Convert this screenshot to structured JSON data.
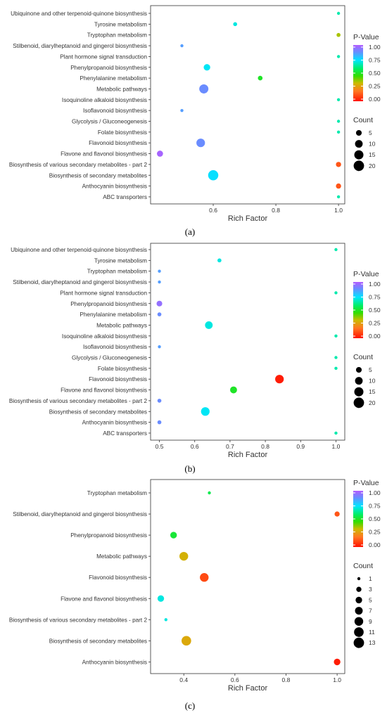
{
  "chart_data": [
    {
      "type": "scatter",
      "panel_label": "(a)",
      "xlabel": "Rich Factor",
      "x_ticks": [
        "0.6",
        "0.8",
        "1.0"
      ],
      "xlim": [
        0.4,
        1.02
      ],
      "categories": [
        "Ubiquinone and other terpenoid-quinone biosynthesis",
        "Tyrosine metabolism",
        "Tryptophan metabolism",
        "Stilbenoid, diarylheptanoid and gingerol biosynthesis",
        "Plant hormone signal transduction",
        "Phenylpropanoid biosynthesis",
        "Phenylalanine metabolism",
        "Metabolic pathways",
        "Isoquinoline alkaloid biosynthesis",
        "Isoflavonoid biosynthesis",
        "Glycolysis / Gluconeogenesis",
        "Folate biosynthesis",
        "Flavonoid biosynthesis",
        "Flavone and flavonol biosynthesis",
        "Biosynthesis of various secondary metabolites - part 2",
        "Biosynthesis of secondary metabolites",
        "Anthocyanin biosynthesis",
        "ABC transporters"
      ],
      "points": [
        {
          "x": 1.0,
          "count": 1,
          "p": 0.65
        },
        {
          "x": 0.67,
          "count": 2,
          "p": 0.7
        },
        {
          "x": 1.0,
          "count": 2,
          "p": 0.35
        },
        {
          "x": 0.5,
          "count": 1,
          "p": 0.85
        },
        {
          "x": 1.0,
          "count": 1,
          "p": 0.65
        },
        {
          "x": 0.58,
          "count": 7,
          "p": 0.72
        },
        {
          "x": 0.75,
          "count": 3,
          "p": 0.5
        },
        {
          "x": 0.57,
          "count": 15,
          "p": 0.88
        },
        {
          "x": 1.0,
          "count": 1,
          "p": 0.65
        },
        {
          "x": 0.5,
          "count": 1,
          "p": 0.85
        },
        {
          "x": 1.0,
          "count": 1,
          "p": 0.65
        },
        {
          "x": 1.0,
          "count": 1,
          "p": 0.65
        },
        {
          "x": 0.56,
          "count": 13,
          "p": 0.88
        },
        {
          "x": 0.43,
          "count": 6,
          "p": 0.98
        },
        {
          "x": 1.0,
          "count": 4,
          "p": 0.12
        },
        {
          "x": 0.6,
          "count": 19,
          "p": 0.74
        },
        {
          "x": 1.0,
          "count": 4,
          "p": 0.12
        },
        {
          "x": 1.0,
          "count": 1,
          "p": 0.65
        }
      ],
      "color_legend": {
        "title": "P-Value",
        "ticks": [
          "1.00",
          "0.75",
          "0.50",
          "0.25",
          "0.00"
        ]
      },
      "size_legend": {
        "title": "Count",
        "labels": [
          "5",
          "10",
          "15",
          "20"
        ],
        "values": [
          5,
          10,
          15,
          20
        ]
      },
      "count_range": [
        1,
        20
      ]
    },
    {
      "type": "scatter",
      "panel_label": "(b)",
      "xlabel": "Rich Factor",
      "x_ticks": [
        "0.5",
        "0.6",
        "0.7",
        "0.8",
        "0.9",
        "1.0"
      ],
      "xlim": [
        0.475,
        1.025
      ],
      "categories": [
        "Ubiquinone and other terpenoid-quinone biosynthesis",
        "Tyrosine metabolism",
        "Tryptophan metabolism",
        "Stilbenoid, diarylheptanoid and gingerol biosynthesis",
        "Plant hormone signal transduction",
        "Phenylpropanoid biosynthesis",
        "Phenylalanine metabolism",
        "Metabolic pathways",
        "Isoquinoline alkaloid biosynthesis",
        "Isoflavonoid biosynthesis",
        "Glycolysis / Gluconeogenesis",
        "Folate biosynthesis",
        "Flavonoid biosynthesis",
        "Flavone and flavonol biosynthesis",
        "Biosynthesis of various secondary metabolites - part 2",
        "Biosynthesis of secondary metabolites",
        "Anthocyanin biosynthesis",
        "ABC transporters"
      ],
      "points": [
        {
          "x": 1.0,
          "count": 1,
          "p": 0.65
        },
        {
          "x": 0.67,
          "count": 2,
          "p": 0.7
        },
        {
          "x": 0.5,
          "count": 1,
          "p": 0.85
        },
        {
          "x": 0.5,
          "count": 1,
          "p": 0.85
        },
        {
          "x": 1.0,
          "count": 1,
          "p": 0.65
        },
        {
          "x": 0.5,
          "count": 5,
          "p": 0.95
        },
        {
          "x": 0.5,
          "count": 2,
          "p": 0.88
        },
        {
          "x": 0.64,
          "count": 10,
          "p": 0.7
        },
        {
          "x": 1.0,
          "count": 1,
          "p": 0.65
        },
        {
          "x": 0.5,
          "count": 1,
          "p": 0.85
        },
        {
          "x": 1.0,
          "count": 1,
          "p": 0.65
        },
        {
          "x": 1.0,
          "count": 1,
          "p": 0.65
        },
        {
          "x": 0.84,
          "count": 13,
          "p": 0.02
        },
        {
          "x": 0.71,
          "count": 8,
          "p": 0.5
        },
        {
          "x": 0.5,
          "count": 2,
          "p": 0.88
        },
        {
          "x": 0.63,
          "count": 13,
          "p": 0.72
        },
        {
          "x": 0.5,
          "count": 2,
          "p": 0.88
        },
        {
          "x": 1.0,
          "count": 1,
          "p": 0.65
        }
      ],
      "color_legend": {
        "title": "P-Value",
        "ticks": [
          "1.00",
          "0.75",
          "0.50",
          "0.25",
          "0.00"
        ]
      },
      "size_legend": {
        "title": "Count",
        "labels": [
          "5",
          "10",
          "15",
          "20"
        ],
        "values": [
          5,
          10,
          15,
          20
        ]
      },
      "count_range": [
        1,
        20
      ]
    },
    {
      "type": "scatter",
      "panel_label": "(c)",
      "xlabel": "Rich Factor",
      "x_ticks": [
        "0.4",
        "0.6",
        "0.8",
        "1.0"
      ],
      "xlim": [
        0.27,
        1.03
      ],
      "categories": [
        "Tryptophan metabolism",
        "Stilbenoid, diarylheptanoid and gingerol biosynthesis",
        "Phenylpropanoid biosynthesis",
        "Metabolic pathways",
        "Flavonoid biosynthesis",
        "Flavone and flavonol biosynthesis",
        "Biosynthesis of various secondary metabolites - part 2",
        "Biosynthesis of secondary metabolites",
        "Anthocyanin biosynthesis"
      ],
      "points": [
        {
          "x": 0.5,
          "count": 1,
          "p": 0.55
        },
        {
          "x": 1.0,
          "count": 3,
          "p": 0.12
        },
        {
          "x": 0.36,
          "count": 5,
          "p": 0.52
        },
        {
          "x": 0.4,
          "count": 9,
          "p": 0.3
        },
        {
          "x": 0.48,
          "count": 9,
          "p": 0.1
        },
        {
          "x": 0.31,
          "count": 5,
          "p": 0.7
        },
        {
          "x": 0.33,
          "count": 1,
          "p": 0.7
        },
        {
          "x": 0.41,
          "count": 11,
          "p": 0.28
        },
        {
          "x": 1.0,
          "count": 5,
          "p": 0.02
        }
      ],
      "color_legend": {
        "title": "P-Value",
        "ticks": [
          "1.00",
          "0.75",
          "0.50",
          "0.25",
          "0.00"
        ]
      },
      "size_legend": {
        "title": "Count",
        "labels": [
          "1",
          "3",
          "5",
          "7",
          "9",
          "11",
          "13"
        ],
        "values": [
          1,
          3,
          5,
          7,
          9,
          11,
          13
        ]
      },
      "count_range": [
        1,
        13
      ]
    }
  ]
}
